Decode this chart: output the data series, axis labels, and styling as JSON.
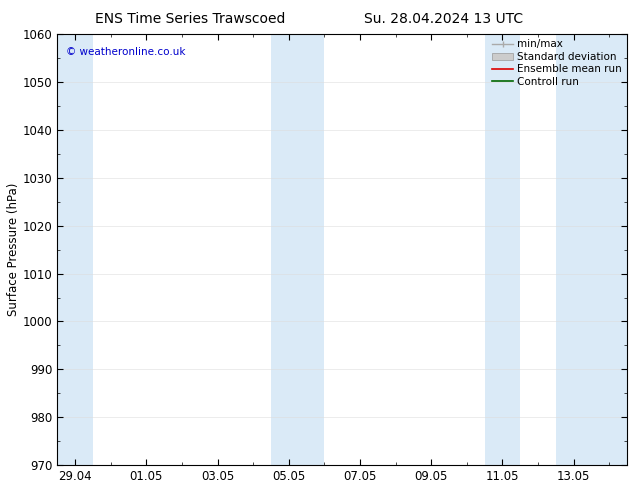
{
  "title_left": "ENS Time Series Trawscoed",
  "title_right": "Su. 28.04.2024 13 UTC",
  "ylabel": "Surface Pressure (hPa)",
  "ylim": [
    970,
    1060
  ],
  "yticks": [
    970,
    980,
    990,
    1000,
    1010,
    1020,
    1030,
    1040,
    1050,
    1060
  ],
  "xtick_labels": [
    "29.04",
    "01.05",
    "03.05",
    "05.05",
    "07.05",
    "09.05",
    "11.05",
    "13.05"
  ],
  "xtick_positions": [
    0,
    2,
    4,
    6,
    8,
    10,
    12,
    14
  ],
  "xlim": [
    -0.5,
    15.5
  ],
  "background_color": "#ffffff",
  "plot_bg_color": "#ffffff",
  "shaded_bands": [
    {
      "x_start": -0.5,
      "x_end": 0.5,
      "color": "#daeaf7"
    },
    {
      "x_start": 5.5,
      "x_end": 6.5,
      "color": "#daeaf7"
    },
    {
      "x_start": 6.5,
      "x_end": 7.0,
      "color": "#daeaf7"
    },
    {
      "x_start": 11.5,
      "x_end": 12.5,
      "color": "#daeaf7"
    },
    {
      "x_start": 13.5,
      "x_end": 15.5,
      "color": "#daeaf7"
    }
  ],
  "watermark_text": "© weatheronline.co.uk",
  "watermark_color": "#0000cc",
  "legend_items": [
    {
      "label": "min/max",
      "color": "#aaaaaa",
      "style": "minmax"
    },
    {
      "label": "Standard deviation",
      "color": "#cccccc",
      "style": "band"
    },
    {
      "label": "Ensemble mean run",
      "color": "#dd0000",
      "style": "line"
    },
    {
      "label": "Controll run",
      "color": "#006600",
      "style": "line"
    }
  ],
  "title_fontsize": 10,
  "tick_fontsize": 8.5,
  "ylabel_fontsize": 8.5,
  "legend_fontsize": 7.5
}
